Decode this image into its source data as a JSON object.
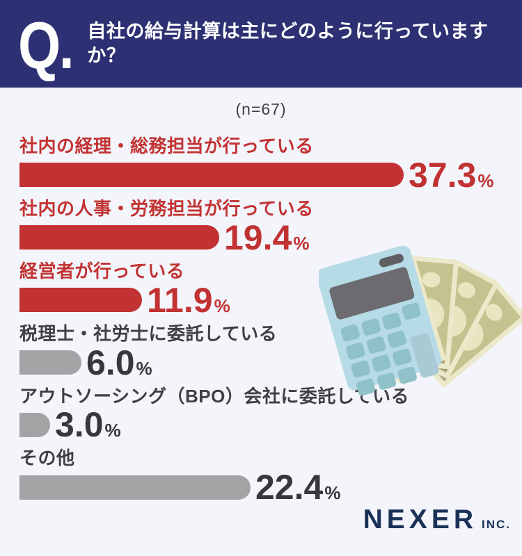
{
  "header": {
    "q_label": "Q.",
    "question": "自社の給与計算は主にどのように行っていますか？",
    "bg_color": "#2d3173",
    "text_color": "#ffffff"
  },
  "survey": {
    "sample_note": "(n=67)"
  },
  "chart_data": {
    "type": "bar",
    "orientation": "horizontal",
    "title": "自社の給与計算は主にどのように行っていますか？",
    "sample_size": 67,
    "unit": "%",
    "categories": [
      "社内の経理・総務担当が行っている",
      "社内の人事・労務担当が行っている",
      "経営者が行っている",
      "税理士・社労士に委託している",
      "アウトソーシング（BPO）会社に委託している",
      "その他"
    ],
    "values": [
      37.3,
      19.4,
      11.9,
      6.0,
      3.0,
      22.4
    ],
    "value_labels": [
      "37.3",
      "19.4",
      "11.9",
      "6.0",
      "3.0",
      "22.4"
    ],
    "highlighted": [
      true,
      true,
      true,
      false,
      false,
      false
    ],
    "xlim": [
      0,
      40
    ],
    "grid": false,
    "legend": false,
    "colors": {
      "highlight_bar": "#c23232",
      "highlight_text": "#c23232",
      "default_bar": "#a2a3a5",
      "default_label": "#3f3f44",
      "default_value": "#38383c"
    }
  },
  "illustration": {
    "items": [
      "calculator",
      "yen-banknotes"
    ]
  },
  "footer": {
    "brand": "NEXER",
    "suffix": "INC.",
    "color": "#1b3158"
  }
}
